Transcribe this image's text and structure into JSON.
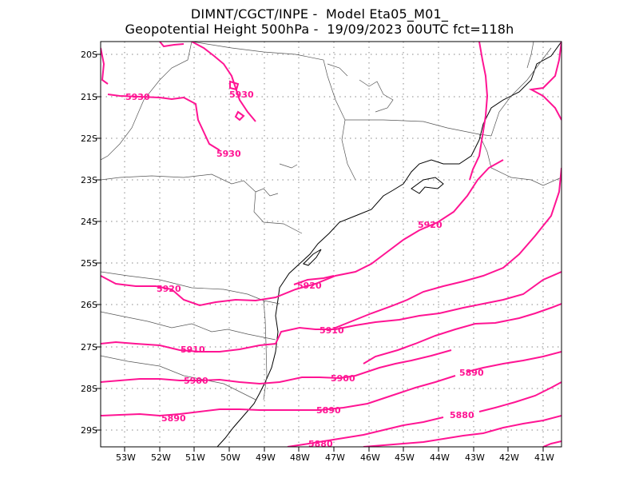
{
  "title": {
    "line1": "DIMNT/CGCT/INPE -  Model Eta05_M01_",
    "line2": "Geopotential Height 500hPa -  19/09/2023 00UTC fct=118h"
  },
  "map": {
    "lat_labels": [
      "20S",
      "21S",
      "22S",
      "23S",
      "24S",
      "25S",
      "26S",
      "27S",
      "28S",
      "29S"
    ],
    "lon_labels": [
      "53W",
      "52W",
      "51W",
      "50W",
      "49W",
      "48W",
      "47W",
      "46W",
      "45W",
      "44W",
      "43W",
      "42W",
      "41W"
    ],
    "contour_color": "#ff1493",
    "contour_labels": [
      "5930",
      "5930",
      "5930",
      "5920",
      "5920",
      "5920",
      "5910",
      "5910",
      "5900",
      "5900",
      "5890",
      "5890",
      "5890",
      "5880",
      "5880"
    ]
  }
}
